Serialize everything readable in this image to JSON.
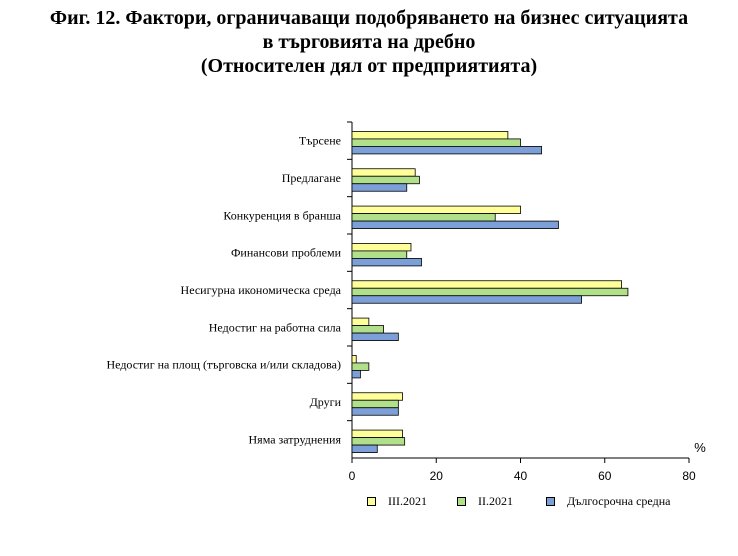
{
  "title": {
    "line1": "Фиг. 12. Фактори, ограничаващи подобряването на бизнес ситуацията",
    "line2": "в търговията на дребно",
    "line3": "(Относителен дял от предприятията)"
  },
  "colors": {
    "series1": "#ffff99",
    "series2": "#b2df8a",
    "series3": "#7b9fd6"
  },
  "chart_data": {
    "type": "bar",
    "orientation": "horizontal",
    "title": "Фиг. 12. Фактори, ограничаващи подобряването на бизнес ситуацията в търговията на дребно (Относителен дял от предприятията)",
    "unit_label": "%",
    "xlim": [
      0,
      80
    ],
    "xticks": [
      "0",
      "20",
      "40",
      "60",
      "80"
    ],
    "categories": [
      "Търсене",
      "Предлагане",
      "Конкуренция в бранша",
      "Финансови проблеми",
      "Несигурна икономическа среда",
      "Недостиг на работна сила",
      "Недостиг на площ (търговска и/или складова)",
      "Други",
      "Няма затруднения"
    ],
    "series": [
      {
        "name": "III.2021",
        "values": [
          37,
          15,
          40,
          14,
          64,
          4,
          1,
          12,
          12
        ]
      },
      {
        "name": "II.2021",
        "values": [
          40,
          16,
          34,
          13,
          65.5,
          7.5,
          4,
          11,
          12.5
        ]
      },
      {
        "name": "Дългосрочна средна",
        "values": [
          45,
          13,
          49,
          16.5,
          54.5,
          11,
          2,
          11,
          6
        ]
      }
    ],
    "legend": "bottom"
  }
}
